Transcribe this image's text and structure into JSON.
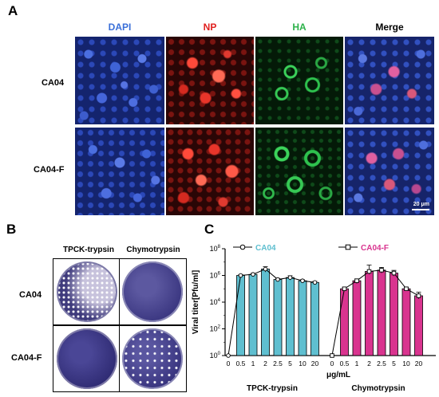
{
  "panel_a": {
    "letter": "A",
    "channels": [
      "DAPI",
      "NP",
      "HA",
      "Merge"
    ],
    "channel_colors": [
      "#3a6fd8",
      "#e0201f",
      "#2db24a",
      "#000000"
    ],
    "rows": [
      "CA04",
      "CA04-F"
    ],
    "scale_bar": "20 μm"
  },
  "panel_b": {
    "letter": "B",
    "columns": [
      "TPCK-trypsin",
      "Chymotrypsin"
    ],
    "rows": [
      "CA04",
      "CA04-F"
    ]
  },
  "panel_c": {
    "letter": "C",
    "xlabel_unit": "μg/mL",
    "group_labels": [
      "TPCK-trypsin",
      "Chymotrypsin"
    ]
  },
  "chart_data": {
    "type": "bar",
    "ylabel": "Viral titer[Pfu/ml]",
    "yscale": "log",
    "ylim": [
      1,
      100000000
    ],
    "yticks": [
      "10^0",
      "10^2",
      "10^4",
      "10^6",
      "10^8"
    ],
    "xlabel": "μg/mL",
    "legend_placement": "top",
    "series": [
      {
        "name": "CA04",
        "group": "TPCK-trypsin",
        "color": "#5fbfd0",
        "line_marker": "circle",
        "categories": [
          "0",
          "0.5",
          "1",
          "2",
          "2.5",
          "5",
          "10",
          "20"
        ],
        "values": [
          1,
          1000000,
          1200000,
          3000000,
          500000,
          700000,
          400000,
          300000
        ],
        "errors": [
          0,
          150000,
          250000,
          1500000,
          100000,
          250000,
          80000,
          60000
        ]
      },
      {
        "name": "CA04-F",
        "group": "Chymotrypsin",
        "color": "#d9348f",
        "line_marker": "square",
        "categories": [
          "0",
          "0.5",
          "1",
          "2",
          "2.5",
          "5",
          "10",
          "20"
        ],
        "values": [
          1,
          100000,
          400000,
          2000000,
          2500000,
          1500000,
          100000,
          30000
        ],
        "errors": [
          0,
          30000,
          150000,
          4000000,
          1500000,
          900000,
          30000,
          25000
        ]
      }
    ]
  }
}
